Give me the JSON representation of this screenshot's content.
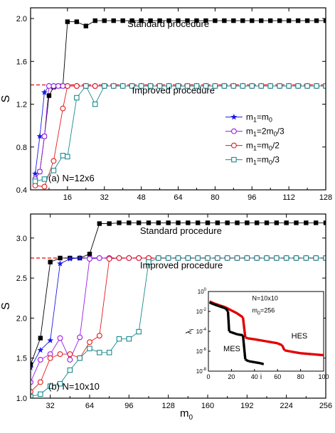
{
  "figure": {
    "shared_xlabel": "m",
    "shared_xlabel_sub": "0"
  },
  "chart_data": [
    {
      "type": "line",
      "panel_label": "(a) N=12x6",
      "ylabel": "S",
      "xlabel": "",
      "xlim": [
        0,
        128
      ],
      "ylim": [
        0.4,
        2.1
      ],
      "xticks": [
        16,
        32,
        48,
        64,
        80,
        96,
        112,
        128
      ],
      "yticks": [
        0.4,
        0.8,
        1.2,
        1.6,
        2.0
      ],
      "ytick_labels": [
        "0.4",
        "0.8",
        "1.2",
        "1.6",
        "2.0"
      ],
      "reference_line": {
        "y": 1.38,
        "color": "#e02020"
      },
      "annotations": [
        {
          "text": "Standard procedure",
          "x": 42,
          "y": 1.92
        },
        {
          "text": "Improved procedure",
          "x": 44,
          "y": 1.3
        }
      ],
      "legend": {
        "position": "right",
        "entries": [
          {
            "base": "m",
            "sub1": "1",
            "mid": "=m",
            "sub2": "0",
            "tail": "",
            "series": 1
          },
          {
            "base": "m",
            "sub1": "1",
            "mid": "=2m",
            "sub2": "0",
            "tail": "/3",
            "series": 2
          },
          {
            "base": "m",
            "sub1": "1",
            "mid": "=m",
            "sub2": "0",
            "tail": "/2",
            "series": 3
          },
          {
            "base": "m",
            "sub1": "1",
            "mid": "=m",
            "sub2": "0",
            "tail": "/3",
            "series": 4
          }
        ]
      },
      "series": [
        {
          "color": "#000000",
          "marker": "square-filled",
          "x": [
            2,
            4,
            6,
            8,
            10,
            12,
            14,
            16,
            20,
            24,
            28,
            32,
            36,
            40,
            44,
            48,
            52,
            56,
            60,
            64,
            68,
            72,
            76,
            80,
            84,
            88,
            92,
            96,
            100,
            104,
            108,
            112,
            116,
            120,
            124,
            128
          ],
          "y": [
            0.5,
            0.57,
            0.9,
            1.28,
            1.36,
            1.37,
            1.37,
            1.97,
            1.97,
            1.93,
            1.98,
            1.98,
            1.98,
            1.98,
            1.98,
            1.98,
            1.98,
            1.98,
            1.98,
            1.98,
            1.98,
            1.98,
            1.98,
            1.98,
            1.98,
            1.98,
            1.98,
            1.98,
            1.98,
            1.98,
            1.98,
            1.98,
            1.98,
            1.98,
            1.98,
            1.98
          ]
        },
        {
          "color": "#1a1ae6",
          "marker": "star",
          "x": [
            2,
            4,
            6,
            8,
            10,
            12,
            14,
            16,
            20,
            24,
            28,
            32,
            36,
            40,
            44,
            48,
            52,
            56,
            60,
            64,
            68,
            72,
            76,
            80,
            84,
            88,
            92,
            96,
            100,
            104,
            108,
            112,
            116,
            120,
            124,
            128
          ],
          "y": [
            0.55,
            0.9,
            1.31,
            1.37,
            1.37,
            1.37,
            1.37,
            1.37,
            1.37,
            1.37,
            1.37,
            1.37,
            1.37,
            1.37,
            1.37,
            1.37,
            1.37,
            1.37,
            1.37,
            1.37,
            1.37,
            1.37,
            1.37,
            1.37,
            1.37,
            1.37,
            1.37,
            1.37,
            1.37,
            1.37,
            1.37,
            1.37,
            1.37,
            1.37,
            1.37,
            1.37
          ]
        },
        {
          "color": "#9a1ae6",
          "marker": "circle-open",
          "x": [
            2,
            4,
            6,
            8,
            10,
            12,
            14,
            16,
            20,
            24,
            28,
            32,
            36,
            40,
            44,
            48,
            52,
            56,
            60,
            64,
            68,
            72,
            76,
            80,
            84,
            88,
            92,
            96,
            100,
            104,
            108,
            112,
            116,
            120,
            124,
            128
          ],
          "y": [
            0.5,
            0.57,
            0.9,
            1.37,
            1.37,
            1.37,
            1.37,
            1.37,
            1.37,
            1.37,
            1.37,
            1.37,
            1.37,
            1.37,
            1.37,
            1.37,
            1.37,
            1.37,
            1.37,
            1.37,
            1.37,
            1.37,
            1.37,
            1.37,
            1.37,
            1.37,
            1.37,
            1.37,
            1.37,
            1.37,
            1.37,
            1.37,
            1.37,
            1.37,
            1.37,
            1.37
          ]
        },
        {
          "color": "#e61a1a",
          "marker": "circle-open",
          "x": [
            2,
            6,
            10,
            14,
            16,
            20,
            24,
            28,
            32,
            36,
            40,
            44,
            48,
            52,
            56,
            60,
            64,
            68,
            72,
            76,
            80,
            84,
            88,
            92,
            96,
            100,
            104,
            108,
            112,
            116,
            120,
            124,
            128
          ],
          "y": [
            0.44,
            0.43,
            0.67,
            1.16,
            1.37,
            1.37,
            1.37,
            1.37,
            1.37,
            1.37,
            1.37,
            1.37,
            1.37,
            1.37,
            1.37,
            1.37,
            1.37,
            1.37,
            1.37,
            1.37,
            1.37,
            1.37,
            1.37,
            1.37,
            1.37,
            1.37,
            1.37,
            1.37,
            1.37,
            1.37,
            1.37,
            1.37,
            1.37
          ]
        },
        {
          "color": "#1a8a8a",
          "marker": "square-open",
          "x": [
            2,
            6,
            10,
            14,
            16,
            20,
            24,
            28,
            32,
            36,
            40,
            44,
            48,
            52,
            56,
            60,
            64,
            68,
            72,
            76,
            80,
            84,
            88,
            92,
            96,
            100,
            104,
            108,
            112,
            116,
            120,
            124,
            128
          ],
          "y": [
            0.48,
            0.5,
            0.58,
            0.72,
            0.71,
            1.26,
            1.37,
            1.2,
            1.37,
            1.37,
            1.37,
            1.37,
            1.37,
            1.37,
            1.37,
            1.37,
            1.37,
            1.37,
            1.37,
            1.37,
            1.37,
            1.37,
            1.37,
            1.37,
            1.37,
            1.37,
            1.37,
            1.37,
            1.37,
            1.37,
            1.37,
            1.37,
            1.37
          ]
        }
      ]
    },
    {
      "type": "line",
      "panel_label": "(b) N=10x10",
      "ylabel": "S",
      "xlabel": "m",
      "xlim": [
        16,
        256
      ],
      "ylim": [
        1.0,
        3.3
      ],
      "xticks": [
        32,
        64,
        96,
        128,
        160,
        192,
        224,
        256
      ],
      "yticks": [
        1.0,
        1.5,
        2.0,
        2.5,
        3.0
      ],
      "ytick_labels": [
        "1.0",
        "1.5",
        "2.0",
        "2.5",
        "3.0"
      ],
      "reference_line": {
        "y": 2.75,
        "color": "#e02020"
      },
      "annotations": [
        {
          "text": "Standard procedure",
          "x": 105,
          "y": 3.05
        },
        {
          "text": "Improved procedure",
          "x": 105,
          "y": 2.62
        }
      ],
      "series": [
        {
          "color": "#000000",
          "marker": "square-filled",
          "x": [
            16,
            24,
            32,
            40,
            48,
            56,
            64,
            72,
            80,
            88,
            96,
            104,
            112,
            120,
            128,
            136,
            144,
            152,
            160,
            168,
            176,
            184,
            192,
            200,
            208,
            216,
            224,
            232,
            240,
            248,
            256
          ],
          "y": [
            1.42,
            1.75,
            2.7,
            2.75,
            2.75,
            2.75,
            2.8,
            3.18,
            3.18,
            3.19,
            3.19,
            3.19,
            3.19,
            3.19,
            3.19,
            3.19,
            3.19,
            3.19,
            3.19,
            3.19,
            3.19,
            3.19,
            3.19,
            3.19,
            3.19,
            3.19,
            3.19,
            3.19,
            3.19,
            3.19,
            3.19
          ]
        },
        {
          "color": "#1a1ae6",
          "marker": "star",
          "x": [
            16,
            24,
            32,
            40,
            48,
            56,
            64,
            72,
            80,
            88,
            96,
            104,
            112,
            120,
            128,
            136,
            144,
            152,
            160,
            168,
            176,
            184,
            192,
            200,
            208,
            216,
            224,
            232,
            240,
            248,
            256
          ],
          "y": [
            1.38,
            1.6,
            1.72,
            2.68,
            2.74,
            2.75,
            2.75,
            2.75,
            2.75,
            2.75,
            2.75,
            2.75,
            2.75,
            2.75,
            2.75,
            2.75,
            2.75,
            2.75,
            2.75,
            2.75,
            2.75,
            2.75,
            2.75,
            2.75,
            2.75,
            2.75,
            2.75,
            2.75,
            2.75,
            2.75,
            2.75
          ]
        },
        {
          "color": "#9a1ae6",
          "marker": "circle-open",
          "x": [
            16,
            24,
            32,
            40,
            48,
            56,
            64,
            72,
            80,
            88,
            96,
            104,
            112,
            120,
            128,
            136,
            144,
            152,
            160,
            168,
            176,
            184,
            192,
            200,
            208,
            216,
            224,
            232,
            240,
            248,
            256
          ],
          "y": [
            1.2,
            1.48,
            1.55,
            1.75,
            1.48,
            1.76,
            2.74,
            2.75,
            2.75,
            2.75,
            2.75,
            2.75,
            2.75,
            2.75,
            2.75,
            2.75,
            2.75,
            2.75,
            2.75,
            2.75,
            2.75,
            2.75,
            2.75,
            2.75,
            2.75,
            2.75,
            2.75,
            2.75,
            2.75,
            2.75,
            2.75
          ]
        },
        {
          "color": "#e61a1a",
          "marker": "circle-open",
          "x": [
            16,
            24,
            32,
            40,
            48,
            56,
            64,
            72,
            80,
            88,
            96,
            104,
            112,
            120,
            128,
            136,
            144,
            152,
            160,
            168,
            176,
            184,
            192,
            200,
            208,
            216,
            224,
            232,
            240,
            248,
            256
          ],
          "y": [
            1.08,
            1.2,
            1.5,
            1.55,
            1.55,
            1.5,
            1.7,
            1.78,
            2.74,
            2.75,
            2.75,
            2.75,
            2.75,
            2.75,
            2.75,
            2.75,
            2.75,
            2.75,
            2.75,
            2.75,
            2.75,
            2.75,
            2.75,
            2.75,
            2.75,
            2.75,
            2.75,
            2.75,
            2.75,
            2.75,
            2.75
          ]
        },
        {
          "color": "#1a8a8a",
          "marker": "square-open",
          "x": [
            16,
            24,
            32,
            40,
            48,
            56,
            64,
            72,
            80,
            88,
            96,
            104,
            112,
            120,
            128,
            136,
            144,
            152,
            160,
            168,
            176,
            184,
            192,
            200,
            208,
            216,
            224,
            232,
            240,
            248,
            256
          ],
          "y": [
            1.02,
            1.05,
            1.15,
            1.18,
            1.35,
            1.5,
            1.62,
            1.57,
            1.57,
            1.74,
            1.74,
            1.83,
            2.7,
            2.75,
            2.75,
            2.75,
            2.75,
            2.75,
            2.75,
            2.75,
            2.75,
            2.75,
            2.75,
            2.75,
            2.75,
            2.75,
            2.75,
            2.75,
            2.75,
            2.75,
            2.75
          ]
        }
      ]
    },
    {
      "type": "scatter",
      "inset": true,
      "ylabel_base": "λ",
      "ylabel_sub": "i",
      "xlabel": "i",
      "xlim": [
        0,
        100
      ],
      "ylim_log10": [
        -8,
        0
      ],
      "xticks": [
        0,
        20,
        40,
        60,
        80,
        100
      ],
      "yticks_log10": [
        0,
        -2,
        -4,
        -6,
        -8
      ],
      "annotations": [
        {
          "text": "N=10x10",
          "x": 38,
          "y_log10": -0.9
        },
        {
          "text": "m",
          "sub": "0",
          "tail": "=256",
          "x": 38,
          "y_log10": -2.1
        },
        {
          "text": "HES",
          "x": 72,
          "y_log10": -4.7
        },
        {
          "text": "MES",
          "x": 13,
          "y_log10": -6.0
        }
      ],
      "series": [
        {
          "name": "HES",
          "color": "#e00000",
          "x": [
            1,
            5,
            10,
            15,
            20,
            25,
            30,
            32,
            34,
            40,
            50,
            60,
            64,
            66,
            70,
            80,
            90,
            100
          ],
          "y_log10": [
            -1.0,
            -1.2,
            -1.4,
            -1.6,
            -1.9,
            -2.2,
            -2.6,
            -4.6,
            -4.7,
            -4.8,
            -5.0,
            -5.2,
            -5.4,
            -5.9,
            -6.0,
            -6.2,
            -6.3,
            -6.4
          ]
        },
        {
          "name": "MES",
          "color": "#000000",
          "x": [
            1,
            5,
            10,
            15,
            17,
            18,
            20,
            25,
            30,
            32,
            33,
            35,
            40,
            45,
            48
          ],
          "y_log10": [
            -1.1,
            -1.3,
            -1.5,
            -1.7,
            -2.0,
            -4.0,
            -4.1,
            -4.3,
            -4.4,
            -6.8,
            -6.9,
            -7.0,
            -7.1,
            -7.2,
            -7.3
          ]
        }
      ]
    }
  ]
}
